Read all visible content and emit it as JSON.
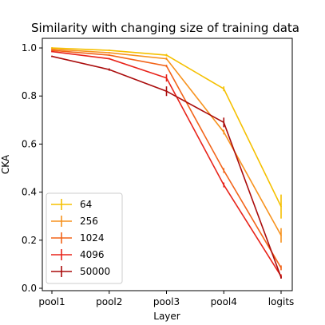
{
  "chart_data": {
    "type": "line",
    "title": "Similarity with changing size of training data",
    "xlabel": "Layer",
    "ylabel": "CKA",
    "categories": [
      "pool1",
      "pool2",
      "pool3",
      "pool4",
      "logits"
    ],
    "ylim": [
      -0.01,
      1.04
    ],
    "yticks": [
      "0.0",
      "0.2",
      "0.4",
      "0.6",
      "0.8",
      "1.0"
    ],
    "grid": false,
    "legend_position": "lower-left",
    "series": [
      {
        "name": "64",
        "color": "#f5c000",
        "values": [
          1.0,
          0.99,
          0.97,
          0.83,
          0.34
        ],
        "errors": [
          0.003,
          0.003,
          0.005,
          0.01,
          0.05
        ]
      },
      {
        "name": "256",
        "color": "#f7921e",
        "values": [
          0.995,
          0.98,
          0.955,
          0.65,
          0.22
        ],
        "errors": [
          0.003,
          0.003,
          0.005,
          0.01,
          0.03
        ]
      },
      {
        "name": "1024",
        "color": "#f26419",
        "values": [
          0.99,
          0.97,
          0.925,
          0.49,
          0.085
        ],
        "errors": [
          0.003,
          0.003,
          0.005,
          0.01,
          0.01
        ]
      },
      {
        "name": "4096",
        "color": "#e8231a",
        "values": [
          0.985,
          0.955,
          0.875,
          0.43,
          0.05
        ],
        "errors": [
          0.003,
          0.003,
          0.015,
          0.01,
          0.008
        ]
      },
      {
        "name": "50000",
        "color": "#aa0c0c",
        "values": [
          0.965,
          0.91,
          0.82,
          0.69,
          0.045
        ],
        "errors": [
          0.003,
          0.005,
          0.02,
          0.02,
          0.005
        ]
      }
    ]
  }
}
